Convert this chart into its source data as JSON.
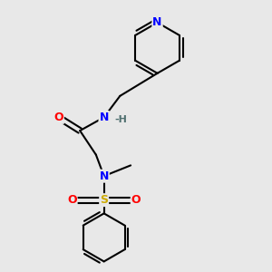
{
  "bg_color": "#e8e8e8",
  "atom_colors": {
    "C": "#000000",
    "N": "#0000ff",
    "O": "#ff0000",
    "S": "#ccaa00",
    "H": "#507070"
  },
  "bond_color": "#000000",
  "bond_width": 1.5
}
